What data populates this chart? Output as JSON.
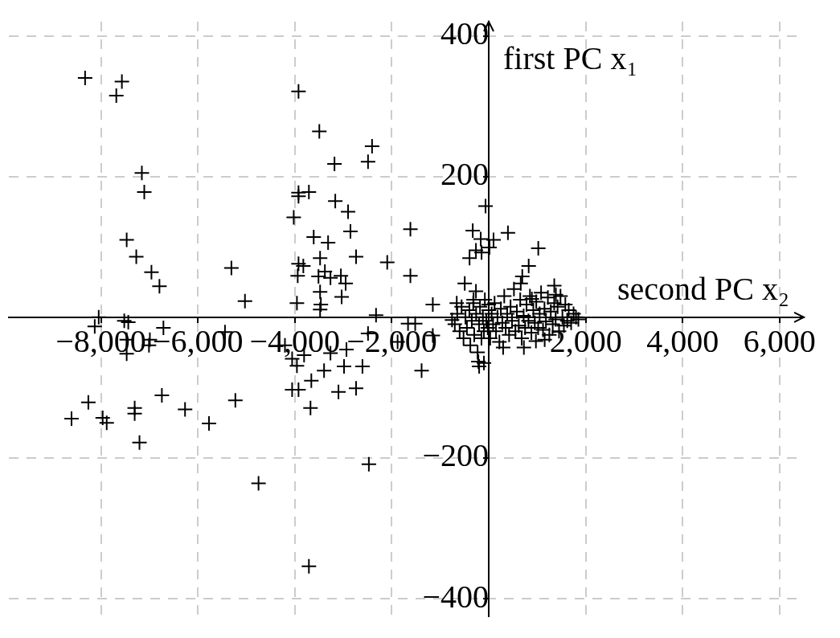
{
  "chart_data": {
    "type": "scatter",
    "xlabel": "second PC x₂",
    "ylabel": "first PC x₁",
    "xlim": [
      -9900,
      6500
    ],
    "ylim": [
      -425,
      420
    ],
    "xticks": [
      {
        "value": -8000,
        "label": "−8,000"
      },
      {
        "value": -6000,
        "label": "−6,000"
      },
      {
        "value": -4000,
        "label": "−4,000"
      },
      {
        "value": -2000,
        "label": "−2,000"
      },
      {
        "value": 2000,
        "label": "2,000"
      },
      {
        "value": 4000,
        "label": "4,000"
      },
      {
        "value": 6000,
        "label": "6,000"
      }
    ],
    "yticks": [
      {
        "value": -400,
        "label": "−400"
      },
      {
        "value": -200,
        "label": "−200"
      },
      200,
      400
    ],
    "grid": true,
    "marker": "cross",
    "legend": false,
    "series": [
      {
        "color": "#000000",
        "x": [
          -8327,
          -7568,
          -7683,
          -7156,
          -7106,
          -7469,
          -7271,
          -6958,
          -6793,
          -8046,
          -8128,
          -7519,
          -7436,
          -6711,
          -7469,
          -6991,
          -7469,
          -7009,
          -8260,
          -8607,
          -7964,
          -7881,
          -7304,
          -7304,
          -7205,
          -6743,
          -6265,
          -5771,
          -5309,
          -5029,
          -5441,
          -5227,
          -4749,
          -3710,
          -2473,
          -3924,
          -3495,
          -2407,
          -2490,
          -3182,
          -3924,
          -3710,
          -3924,
          -4023,
          -3166,
          -2902,
          -2853,
          -3314,
          -2737,
          -3611,
          -3924,
          -3825,
          -3479,
          -3941,
          -3512,
          -3265,
          -3380,
          -3050,
          -2952,
          -3034,
          -3479,
          -3957,
          -3463,
          -3479,
          -4204,
          -4056,
          -3957,
          -4056,
          -3924,
          -3677,
          -3660,
          -3100,
          -2737,
          -3397,
          -2985,
          -2605,
          -3265,
          -2935,
          -3809,
          -2325,
          -2490,
          -1616,
          -1616,
          -2094,
          -1154,
          -1665,
          -1517,
          -1880,
          -1385,
          -1154,
          -757,
          -66,
          -330,
          396,
          99,
          -165,
          -264,
          -396,
          -148,
          16,
          1022,
          824,
          692,
          660,
          -495,
          -264,
          -313,
          0,
          890,
          1352,
          1385,
          -660,
          -99,
          -198,
          297,
          725,
          973,
          1154,
          -214,
          -700,
          -650,
          -600,
          -560,
          -520,
          -480,
          -450,
          -400,
          -380,
          -350,
          -320,
          -300,
          -260,
          -230,
          -200,
          -180,
          -150,
          -120,
          -100,
          -80,
          -50,
          -20,
          0,
          30,
          60,
          90,
          120,
          150,
          180,
          220,
          250,
          280,
          320,
          350,
          380,
          420,
          450,
          480,
          520,
          550,
          580,
          620,
          650,
          680,
          720,
          750,
          780,
          820,
          850,
          880,
          920,
          950,
          980,
          1020,
          1050,
          1080,
          1120,
          1150,
          1180,
          1220,
          1250,
          1280,
          1320,
          1350,
          1380,
          1420,
          1450,
          1480,
          1520,
          1550,
          1580,
          1620,
          1650,
          1700,
          1750,
          1800,
          1850
        ],
        "values": [
          340,
          335,
          315,
          205,
          178,
          110,
          86,
          64,
          44,
          0,
          -13,
          -5,
          -7,
          -15,
          -32,
          -32,
          -52,
          -40,
          -121,
          -144,
          -143,
          -150,
          -129,
          -137,
          -178,
          -111,
          -131,
          -151,
          70,
          23,
          -21,
          -118,
          -236,
          -354,
          -209,
          321,
          264,
          243,
          221,
          218,
          177,
          178,
          172,
          142,
          165,
          150,
          122,
          106,
          86,
          114,
          76,
          73,
          84,
          59,
          58,
          56,
          65,
          59,
          48,
          29,
          36,
          20,
          18,
          11,
          -40,
          -59,
          -69,
          -103,
          -103,
          -129,
          -90,
          -106,
          -101,
          -76,
          -70,
          -70,
          -51,
          -46,
          -54,
          3,
          -23,
          125,
          59,
          78,
          18,
          -9,
          -9,
          -35,
          -76,
          -26,
          -4,
          158,
          123,
          120,
          110,
          111,
          95,
          84,
          92,
          99,
          98,
          73,
          58,
          48,
          48,
          37,
          25,
          18,
          26,
          45,
          32,
          20,
          -65,
          -70,
          -43,
          -43,
          -34,
          -32,
          -63,
          -10,
          5,
          -20,
          15,
          -30,
          0,
          -15,
          10,
          -40,
          -5,
          20,
          -25,
          5,
          -50,
          -10,
          15,
          -30,
          0,
          -20,
          25,
          -5,
          -15,
          10,
          -30,
          5,
          -10,
          20,
          -20,
          0,
          -35,
          12,
          -8,
          30,
          -15,
          5,
          -25,
          15,
          -5,
          40,
          -20,
          8,
          -12,
          25,
          -30,
          2,
          -15,
          18,
          -5,
          30,
          -22,
          10,
          -8,
          22,
          -15,
          5,
          35,
          -18,
          12,
          -6,
          28,
          -25,
          8,
          -10,
          20,
          -3,
          15,
          -20,
          30,
          0,
          -12,
          18,
          -5,
          10,
          -8,
          5,
          0,
          -3
        ]
      }
    ]
  }
}
